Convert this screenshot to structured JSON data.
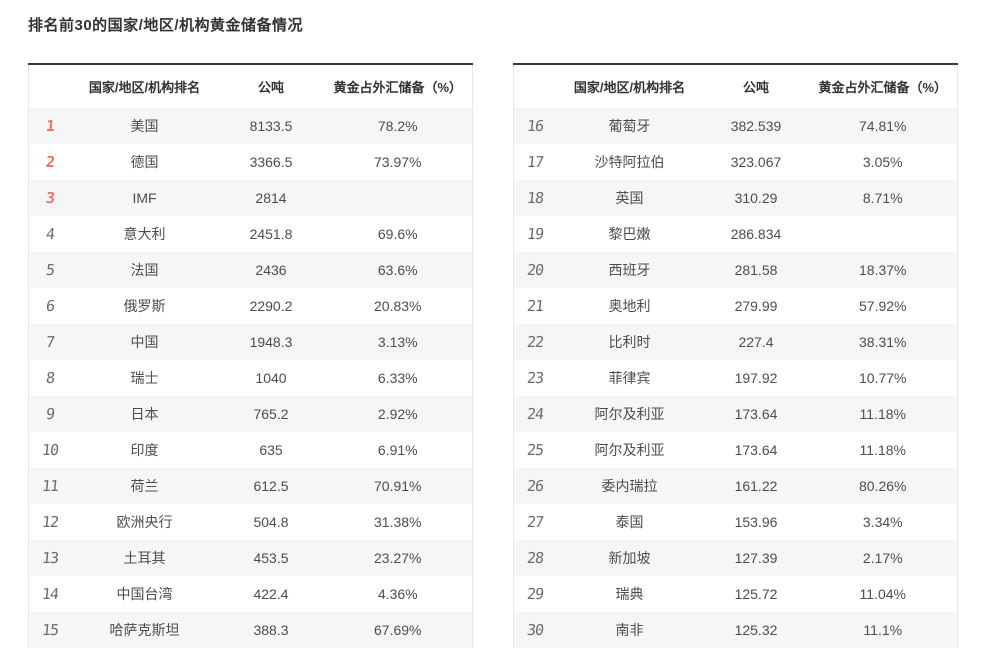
{
  "title": "排名前30的国家/地区/机构黄金储备情况",
  "columns": {
    "rank": "",
    "name": "国家/地区/机构排名",
    "tons": "公吨",
    "pct": "黄金占外汇储备（%）"
  },
  "colors": {
    "accent_red": "#f56c6c",
    "stripe": "#f6f6f6",
    "top_border": "#3a3a3a",
    "text": "#4d4d4d"
  },
  "tables": [
    {
      "rows": [
        {
          "rank": "1",
          "name": "美国",
          "tons": "8133.5",
          "pct": "78.2%",
          "top": true
        },
        {
          "rank": "2",
          "name": "德国",
          "tons": "3366.5",
          "pct": "73.97%",
          "top": true
        },
        {
          "rank": "3",
          "name": "IMF",
          "tons": "2814",
          "pct": "",
          "top": true
        },
        {
          "rank": "4",
          "name": "意大利",
          "tons": "2451.8",
          "pct": "69.6%",
          "top": false
        },
        {
          "rank": "5",
          "name": "法国",
          "tons": "2436",
          "pct": "63.6%",
          "top": false
        },
        {
          "rank": "6",
          "name": "俄罗斯",
          "tons": "2290.2",
          "pct": "20.83%",
          "top": false
        },
        {
          "rank": "7",
          "name": "中国",
          "tons": "1948.3",
          "pct": "3.13%",
          "top": false
        },
        {
          "rank": "8",
          "name": "瑞士",
          "tons": "1040",
          "pct": "6.33%",
          "top": false
        },
        {
          "rank": "9",
          "name": "日本",
          "tons": "765.2",
          "pct": "2.92%",
          "top": false
        },
        {
          "rank": "10",
          "name": "印度",
          "tons": "635",
          "pct": "6.91%",
          "top": false
        },
        {
          "rank": "11",
          "name": "荷兰",
          "tons": "612.5",
          "pct": "70.91%",
          "top": false
        },
        {
          "rank": "12",
          "name": "欧洲央行",
          "tons": "504.8",
          "pct": "31.38%",
          "top": false
        },
        {
          "rank": "13",
          "name": "土耳其",
          "tons": "453.5",
          "pct": "23.27%",
          "top": false
        },
        {
          "rank": "14",
          "name": "中国台湾",
          "tons": "422.4",
          "pct": "4.36%",
          "top": false
        },
        {
          "rank": "15",
          "name": "哈萨克斯坦",
          "tons": "388.3",
          "pct": "67.69%",
          "top": false
        }
      ]
    },
    {
      "rows": [
        {
          "rank": "16",
          "name": "葡萄牙",
          "tons": "382.539",
          "pct": "74.81%",
          "top": false
        },
        {
          "rank": "17",
          "name": "沙特阿拉伯",
          "tons": "323.067",
          "pct": "3.05%",
          "top": false
        },
        {
          "rank": "18",
          "name": "英国",
          "tons": "310.29",
          "pct": "8.71%",
          "top": false
        },
        {
          "rank": "19",
          "name": "黎巴嫩",
          "tons": "286.834",
          "pct": "",
          "top": false
        },
        {
          "rank": "20",
          "name": "西班牙",
          "tons": "281.58",
          "pct": "18.37%",
          "top": false
        },
        {
          "rank": "21",
          "name": "奥地利",
          "tons": "279.99",
          "pct": "57.92%",
          "top": false
        },
        {
          "rank": "22",
          "name": "比利时",
          "tons": "227.4",
          "pct": "38.31%",
          "top": false
        },
        {
          "rank": "23",
          "name": "菲律宾",
          "tons": "197.92",
          "pct": "10.77%",
          "top": false
        },
        {
          "rank": "24",
          "name": "阿尔及利亚",
          "tons": "173.64",
          "pct": "11.18%",
          "top": false
        },
        {
          "rank": "25",
          "name": "阿尔及利亚",
          "tons": "173.64",
          "pct": "11.18%",
          "top": false
        },
        {
          "rank": "26",
          "name": "委内瑞拉",
          "tons": "161.22",
          "pct": "80.26%",
          "top": false
        },
        {
          "rank": "27",
          "name": "泰国",
          "tons": "153.96",
          "pct": "3.34%",
          "top": false
        },
        {
          "rank": "28",
          "name": "新加坡",
          "tons": "127.39",
          "pct": "2.17%",
          "top": false
        },
        {
          "rank": "29",
          "name": "瑞典",
          "tons": "125.72",
          "pct": "11.04%",
          "top": false
        },
        {
          "rank": "30",
          "name": "南非",
          "tons": "125.32",
          "pct": "11.1%",
          "top": false
        }
      ]
    }
  ]
}
